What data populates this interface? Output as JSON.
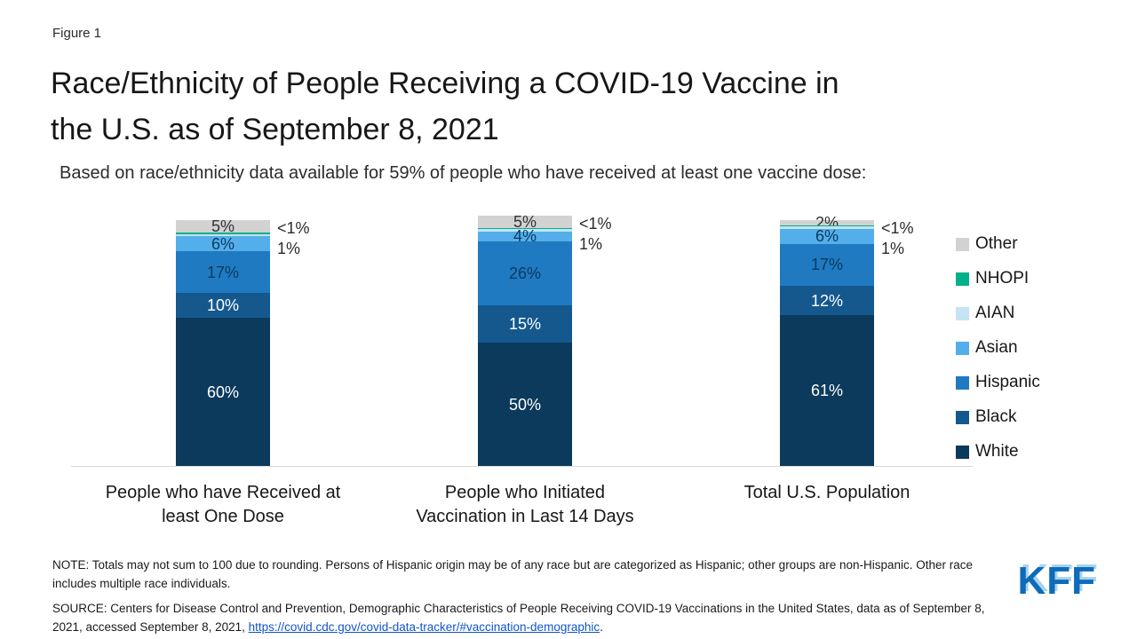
{
  "figure_label": "Figure 1",
  "title_line1": "Race/Ethnicity of People Receiving a COVID-19 Vaccine in",
  "title_line2": "the U.S. as of September 8, 2021",
  "subtitle": "Based on race/ethnicity data available for 59% of people who have received at least one vaccine dose:",
  "chart_data": {
    "type": "bar",
    "stacked": true,
    "ylim": [
      0,
      100
    ],
    "grid": false,
    "legend_position": "right",
    "categories": [
      "People who have Received at\nleast One Dose",
      "People who Initiated\nVaccination in Last 14 Days",
      "Total U.S. Population"
    ],
    "stack_order_top_to_bottom": [
      "Other",
      "NHOPI",
      "AIAN",
      "Asian",
      "Hispanic",
      "Black",
      "White"
    ],
    "series": [
      {
        "name": "White",
        "color": "#0b3a5d",
        "values": [
          60,
          50,
          61
        ],
        "labels": [
          "60%",
          "50%",
          "61%"
        ],
        "label_color": "#ffffff",
        "outside": false
      },
      {
        "name": "Black",
        "color": "#14588e",
        "values": [
          10,
          15,
          12
        ],
        "labels": [
          "10%",
          "15%",
          "12%"
        ],
        "label_color": "#ffffff",
        "outside": false
      },
      {
        "name": "Hispanic",
        "color": "#1f7ac2",
        "values": [
          17,
          26,
          17
        ],
        "labels": [
          "17%",
          "26%",
          "17%"
        ],
        "label_color": "#0b3a5d",
        "outside": false
      },
      {
        "name": "Asian",
        "color": "#54aeea",
        "values": [
          6,
          4,
          6
        ],
        "labels": [
          "6%",
          "4%",
          "6%"
        ],
        "label_color": "#0b3a5d",
        "outside": false
      },
      {
        "name": "AIAN",
        "color": "#c5e3f5",
        "values": [
          1,
          1,
          1
        ],
        "labels": [
          "1%",
          "1%",
          "1%"
        ],
        "label_color": "#2b2b2b",
        "outside": true
      },
      {
        "name": "NHOPI",
        "color": "#00b189",
        "values": [
          0.5,
          0.5,
          0.5
        ],
        "labels": [
          "<1%",
          "<1%",
          "<1%"
        ],
        "label_color": "#2b2b2b",
        "outside": true
      },
      {
        "name": "Other",
        "color": "#d2d2d2",
        "values": [
          5,
          5,
          2
        ],
        "labels": [
          "5%",
          "5%",
          "2%"
        ],
        "label_color": "#333333",
        "outside": false
      }
    ],
    "legend": [
      "Other",
      "NHOPI",
      "AIAN",
      "Asian",
      "Hispanic",
      "Black",
      "White"
    ]
  },
  "note": "NOTE: Totals may not sum to 100 due to rounding. Persons of Hispanic origin may be of any race but are categorized as Hispanic; other groups are non-Hispanic. Other race includes multiple race individuals.",
  "source_prefix": "SOURCE: Centers for Disease Control and Prevention, Demographic Characteristics of People Receiving COVID-19 Vaccinations in the United States, data as of September 8, 2021, accessed September 8, 2021, ",
  "source_link_text": "https://covid.cdc.gov/covid-data-tracker/#vaccination-demographic",
  "source_link_href": "https://covid.cdc.gov/covid-data-tracker/#vaccination-demographic",
  "source_suffix": ".",
  "logo_text": "KFF"
}
